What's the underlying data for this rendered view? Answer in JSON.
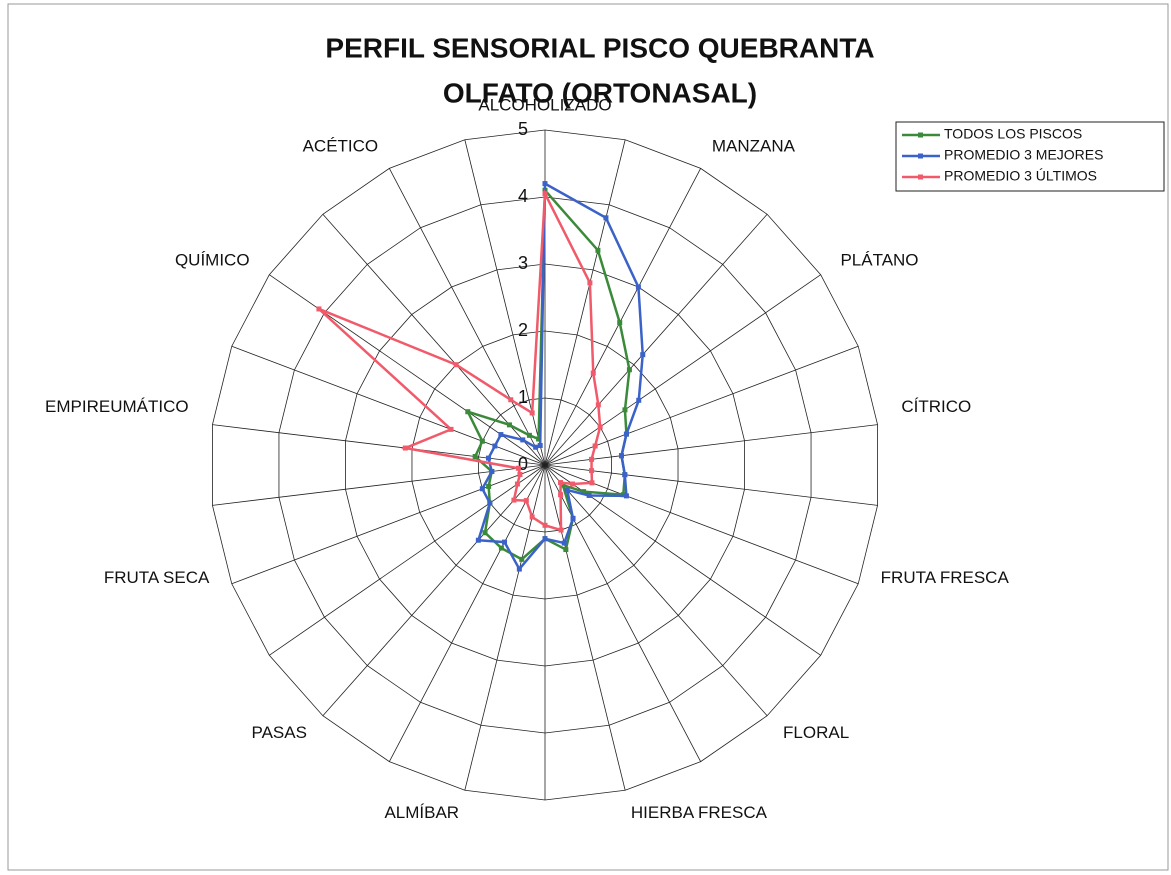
{
  "chart_data": {
    "type": "radar",
    "title": [
      "PERFIL SENSORIAL PISCO QUEBRANTA",
      "OLFATO   (ORTONASAL)"
    ],
    "categories": [
      "ALCOHOLIZADO",
      null,
      "MANZANA",
      null,
      "PLÁTANO",
      null,
      "CÍTRICO",
      null,
      "FRUTA FRESCA",
      null,
      "FLORAL",
      null,
      "HIERBA FRESCA",
      null,
      "ALMÍBAR",
      null,
      "PASAS",
      null,
      "FRUTA SECA",
      null,
      "EMPIREUMÁTICO",
      null,
      "QUÍMICO",
      null,
      "ACÉTICO",
      null
    ],
    "ylim": [
      0,
      5
    ],
    "yticks": [
      0,
      1,
      2,
      3,
      4,
      5
    ],
    "grid": true,
    "legend": "top-right",
    "series": [
      {
        "name": "TODOS LOS PISCOS",
        "color": "#3a8a3a",
        "values": [
          4.1,
          3.3,
          2.4,
          1.9,
          1.45,
          1.3,
          1.15,
          1.2,
          1.25,
          0.7,
          0.4,
          0.9,
          1.3,
          1.1,
          1.45,
          1.4,
          1.35,
          1.0,
          0.9,
          0.8,
          1.05,
          1.0,
          1.4,
          0.8,
          0.5,
          0.4
        ]
      },
      {
        "name": "PROMEDIO 3 MEJORES",
        "color": "#3a62c8",
        "values": [
          4.2,
          3.8,
          3.0,
          2.2,
          1.7,
          1.3,
          1.15,
          1.2,
          1.3,
          0.8,
          0.5,
          0.9,
          1.2,
          1.1,
          1.6,
          1.3,
          1.5,
          1.0,
          1.0,
          0.8,
          0.85,
          0.8,
          0.8,
          0.5,
          0.3,
          0.3
        ]
      },
      {
        "name": "PROMEDIO 3 ÚLTIMOS",
        "color": "#f05a6a",
        "values": [
          4.05,
          2.8,
          1.55,
          1.2,
          1.0,
          0.8,
          0.7,
          0.7,
          0.75,
          0.5,
          0.35,
          0.5,
          1.0,
          0.9,
          0.8,
          0.6,
          0.7,
          0.5,
          0.4,
          0.4,
          2.1,
          1.5,
          4.1,
          2.0,
          1.1,
          0.8
        ]
      }
    ]
  }
}
